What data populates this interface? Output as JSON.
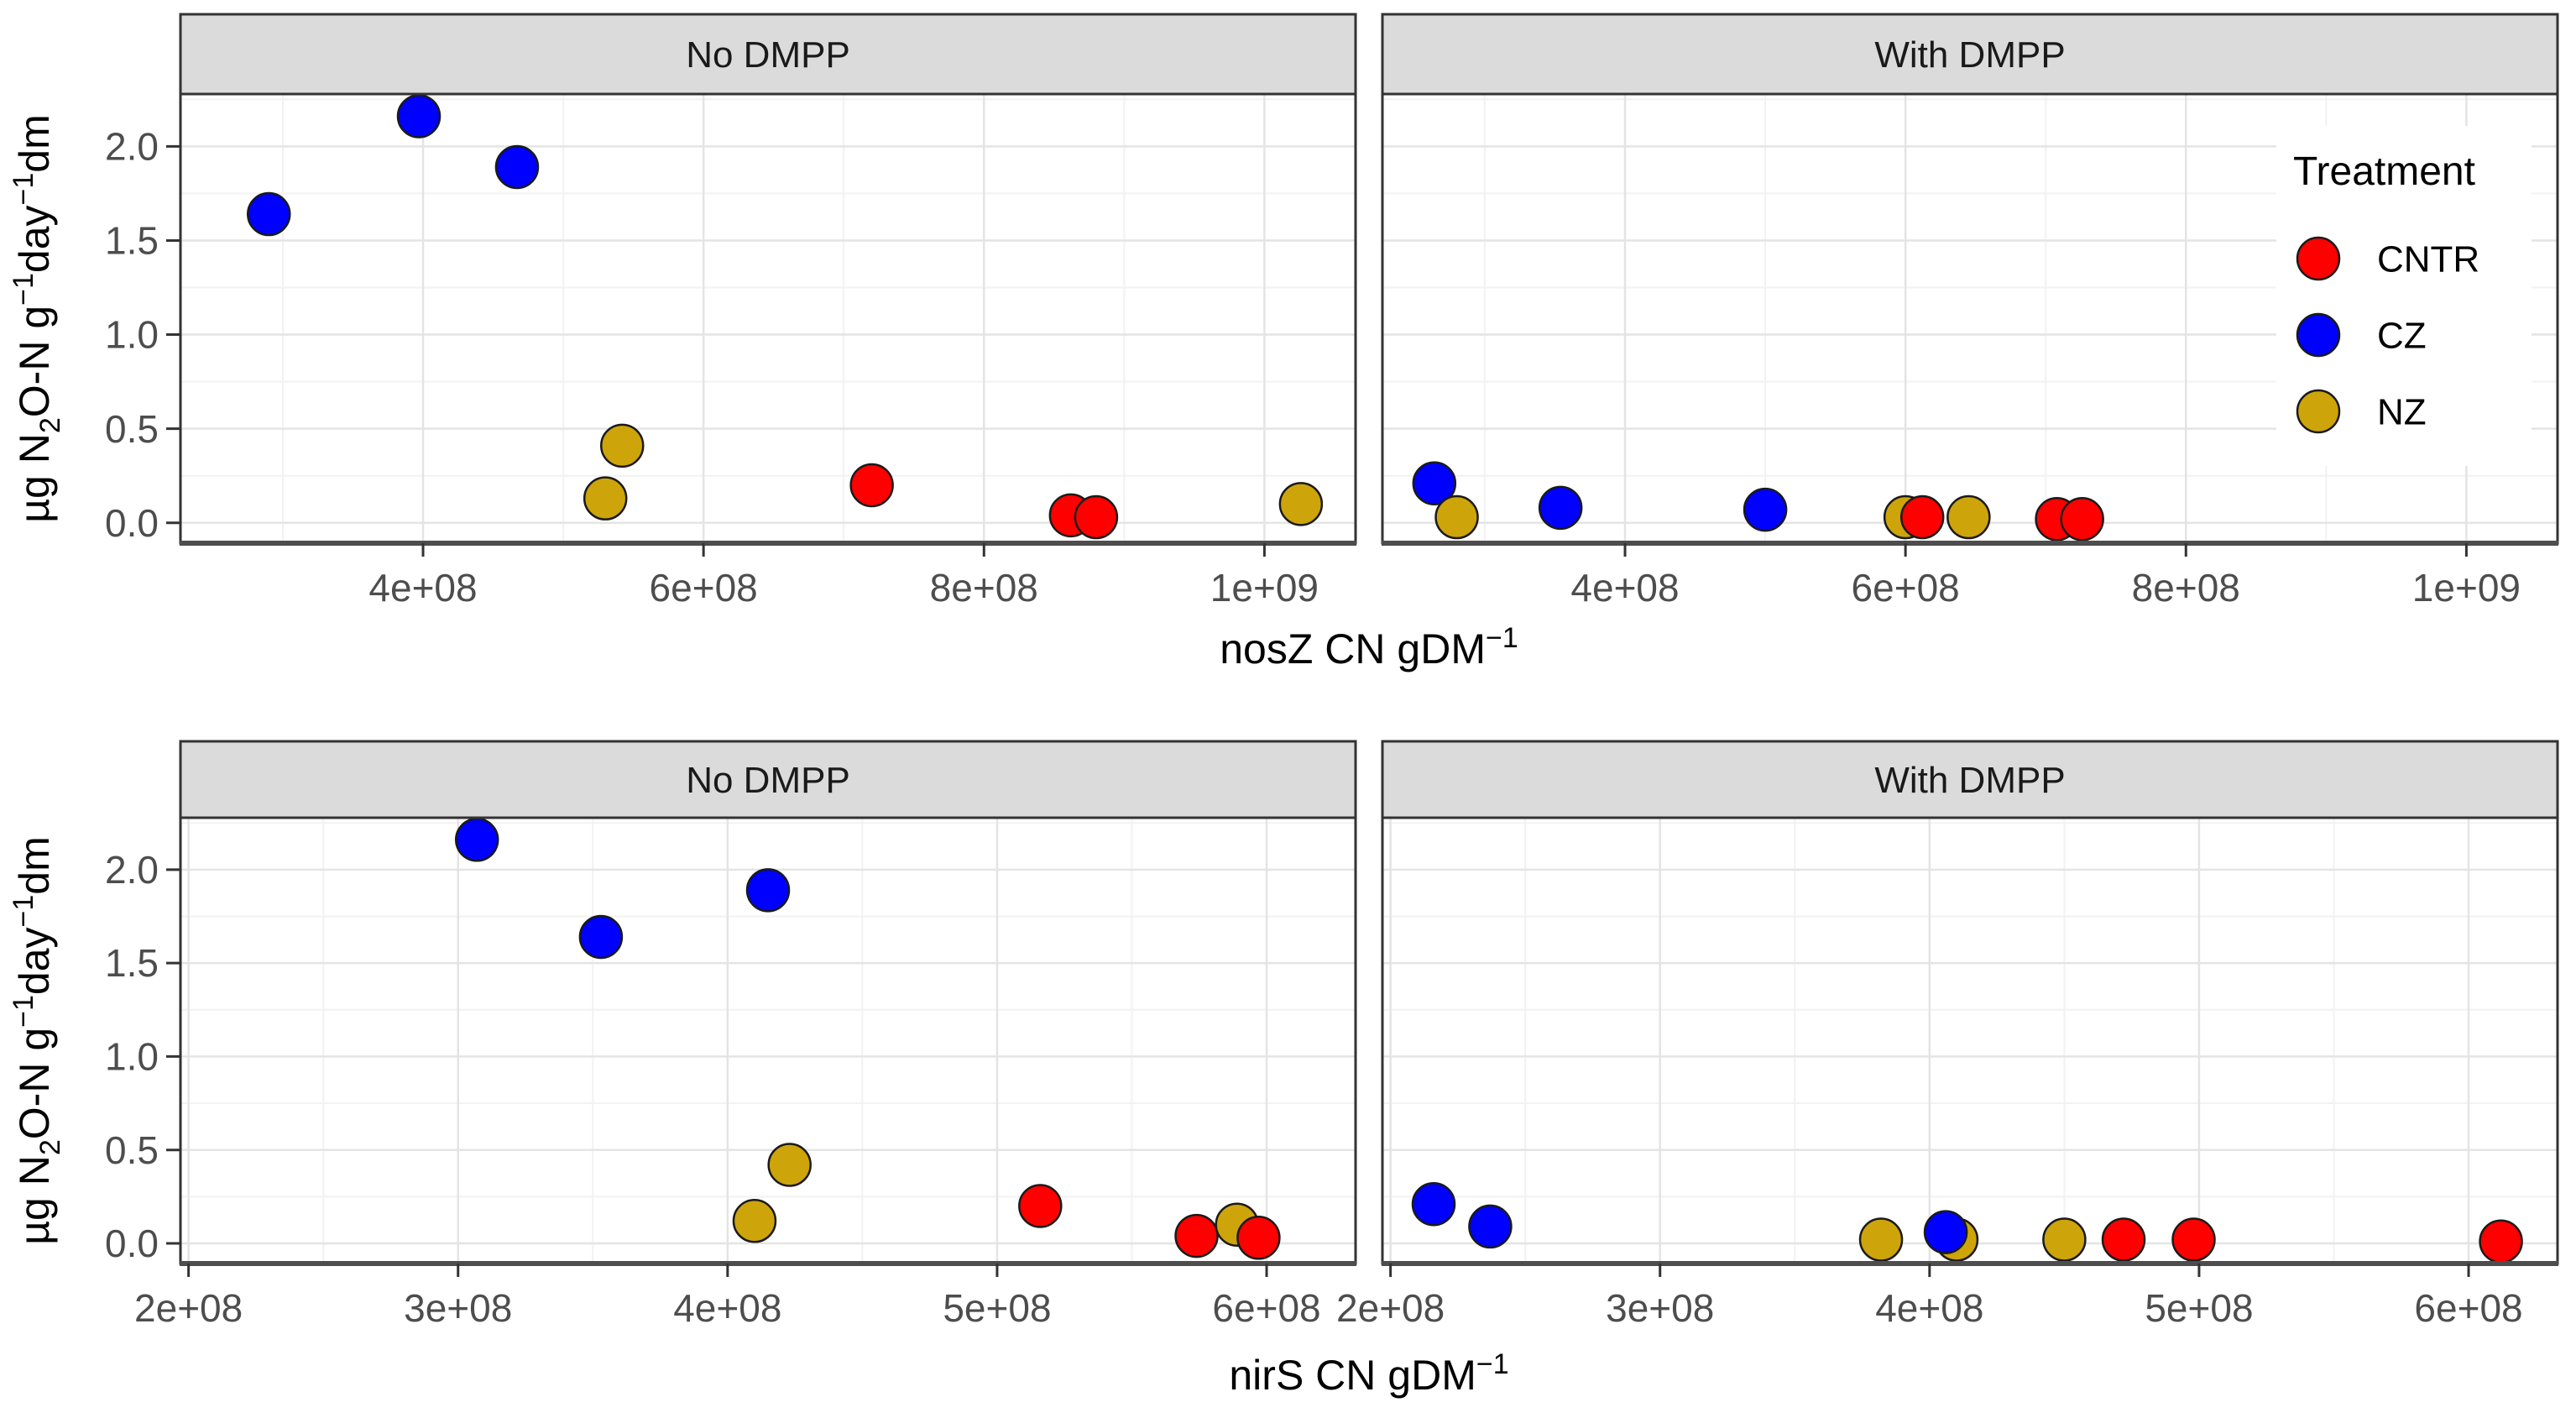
{
  "figure": {
    "background": "#ffffff",
    "strip_fill": "#DBDBDB",
    "strip_text_color": "#1A1A1A",
    "panel_fill": "#ffffff",
    "panel_border_color": "#333333",
    "axis_line_color": "#4D4D4D",
    "grid_major_color": "#E4E4E4",
    "grid_minor_color": "#F2F2F2",
    "tick_text_color": "#4D4D4D",
    "title_text_color": "#000000",
    "point_stroke_color": "#1A1A1A",
    "y_axis": {
      "label_plain": "µg N2O-N g-1day-1dm",
      "label_parts": [
        {
          "t": "µg N"
        },
        {
          "t": "2",
          "s": "sub"
        },
        {
          "t": "O-N g"
        },
        {
          "t": "−1",
          "s": "sup"
        },
        {
          "t": "day"
        },
        {
          "t": "−1",
          "s": "sup"
        },
        {
          "t": "dm"
        }
      ],
      "tick_labels": [
        "0.0",
        "0.5",
        "1.0",
        "1.5",
        "2.0"
      ]
    },
    "legend": {
      "title": "Treatment",
      "items": [
        {
          "label": "CNTR",
          "color": "#FF0000"
        },
        {
          "label": "CZ",
          "color": "#0000FF"
        },
        {
          "label": "NZ",
          "color": "#CDA40A"
        }
      ]
    }
  },
  "treatment_colors": {
    "CNTR": "#FF0000",
    "CZ": "#0000FF",
    "NZ": "#CDA40A"
  },
  "chart_data": [
    {
      "type": "scatter",
      "xlabel": "nosZ CN gDM-1",
      "xlabel_parts": [
        {
          "t": "nosZ CN gDM"
        },
        {
          "t": "−1",
          "s": "sup"
        }
      ],
      "ylabel": "µg N2O-N g-1day-1dm",
      "xlim": [
        227000000,
        1065000000
      ],
      "ylim": [
        -0.108,
        2.278
      ],
      "grid": true,
      "legend_position": "inside-top-right",
      "x_ticks": [
        {
          "v": 400000000,
          "label": "4e+08"
        },
        {
          "v": 600000000,
          "label": "6e+08"
        },
        {
          "v": 800000000,
          "label": "8e+08"
        },
        {
          "v": 1000000000,
          "label": "1e+09"
        }
      ],
      "x_minor": [
        300000000,
        500000000,
        700000000,
        900000000
      ],
      "y_ticks": [
        {
          "v": 0.0,
          "label": "0.0"
        },
        {
          "v": 0.5,
          "label": "0.5"
        },
        {
          "v": 1.0,
          "label": "1.0"
        },
        {
          "v": 1.5,
          "label": "1.5"
        },
        {
          "v": 2.0,
          "label": "2.0"
        }
      ],
      "y_minor": [
        0.25,
        0.75,
        1.25,
        1.75,
        2.25
      ],
      "facets": [
        {
          "label": "No DMPP",
          "points": [
            {
              "treatment": "CZ",
              "x": 290000000,
              "y": 1.64
            },
            {
              "treatment": "CZ",
              "x": 397000000,
              "y": 2.16
            },
            {
              "treatment": "CZ",
              "x": 467000000,
              "y": 1.89
            },
            {
              "treatment": "NZ",
              "x": 530000000,
              "y": 0.13
            },
            {
              "treatment": "NZ",
              "x": 542000000,
              "y": 0.41
            },
            {
              "treatment": "CNTR",
              "x": 720000000,
              "y": 0.2
            },
            {
              "treatment": "CNTR",
              "x": 862000000,
              "y": 0.04
            },
            {
              "treatment": "CNTR",
              "x": 880000000,
              "y": 0.03
            },
            {
              "treatment": "NZ",
              "x": 1026000000,
              "y": 0.1
            }
          ]
        },
        {
          "label": "With DMPP",
          "points": [
            {
              "treatment": "CZ",
              "x": 264000000,
              "y": 0.21
            },
            {
              "treatment": "NZ",
              "x": 280000000,
              "y": 0.03
            },
            {
              "treatment": "CZ",
              "x": 354000000,
              "y": 0.08
            },
            {
              "treatment": "CZ",
              "x": 500000000,
              "y": 0.07
            },
            {
              "treatment": "NZ",
              "x": 600000000,
              "y": 0.03
            },
            {
              "treatment": "CNTR",
              "x": 612000000,
              "y": 0.03
            },
            {
              "treatment": "NZ",
              "x": 645000000,
              "y": 0.03
            },
            {
              "treatment": "CNTR",
              "x": 708000000,
              "y": 0.02
            },
            {
              "treatment": "CNTR",
              "x": 726000000,
              "y": 0.02
            }
          ]
        }
      ]
    },
    {
      "type": "scatter",
      "xlabel": "nirS CN gDM-1",
      "xlabel_parts": [
        {
          "t": "nirS CN gDM"
        },
        {
          "t": "−1",
          "s": "sup"
        }
      ],
      "ylabel": "µg N2O-N g-1day-1dm",
      "xlim": [
        197000000,
        633000000
      ],
      "ylim": [
        -0.108,
        2.278
      ],
      "grid": true,
      "x_ticks": [
        {
          "v": 200000000,
          "label": "2e+08"
        },
        {
          "v": 300000000,
          "label": "3e+08"
        },
        {
          "v": 400000000,
          "label": "4e+08"
        },
        {
          "v": 500000000,
          "label": "5e+08"
        },
        {
          "v": 600000000,
          "label": "6e+08"
        }
      ],
      "x_minor": [
        250000000,
        350000000,
        450000000,
        550000000
      ],
      "y_ticks": [
        {
          "v": 0.0,
          "label": "0.0"
        },
        {
          "v": 0.5,
          "label": "0.5"
        },
        {
          "v": 1.0,
          "label": "1.0"
        },
        {
          "v": 1.5,
          "label": "1.5"
        },
        {
          "v": 2.0,
          "label": "2.0"
        }
      ],
      "y_minor": [
        0.25,
        0.75,
        1.25,
        1.75,
        2.25
      ],
      "facets": [
        {
          "label": "No DMPP",
          "points": [
            {
              "treatment": "CZ",
              "x": 307000000,
              "y": 2.16
            },
            {
              "treatment": "CZ",
              "x": 353000000,
              "y": 1.64
            },
            {
              "treatment": "CZ",
              "x": 415000000,
              "y": 1.89
            },
            {
              "treatment": "NZ",
              "x": 410000000,
              "y": 0.12
            },
            {
              "treatment": "NZ",
              "x": 423000000,
              "y": 0.42
            },
            {
              "treatment": "CNTR",
              "x": 516000000,
              "y": 0.2
            },
            {
              "treatment": "CNTR",
              "x": 574000000,
              "y": 0.04
            },
            {
              "treatment": "NZ",
              "x": 589000000,
              "y": 0.1
            },
            {
              "treatment": "CNTR",
              "x": 597000000,
              "y": 0.03
            }
          ]
        },
        {
          "label": "With DMPP",
          "points": [
            {
              "treatment": "CZ",
              "x": 216000000,
              "y": 0.21
            },
            {
              "treatment": "CZ",
              "x": 237000000,
              "y": 0.09
            },
            {
              "treatment": "NZ",
              "x": 382000000,
              "y": 0.02
            },
            {
              "treatment": "NZ",
              "x": 410000000,
              "y": 0.02
            },
            {
              "treatment": "CZ",
              "x": 406000000,
              "y": 0.06
            },
            {
              "treatment": "NZ",
              "x": 450000000,
              "y": 0.02
            },
            {
              "treatment": "CNTR",
              "x": 472000000,
              "y": 0.02
            },
            {
              "treatment": "CNTR",
              "x": 498000000,
              "y": 0.02
            },
            {
              "treatment": "CNTR",
              "x": 612000000,
              "y": 0.01
            }
          ]
        }
      ]
    }
  ]
}
